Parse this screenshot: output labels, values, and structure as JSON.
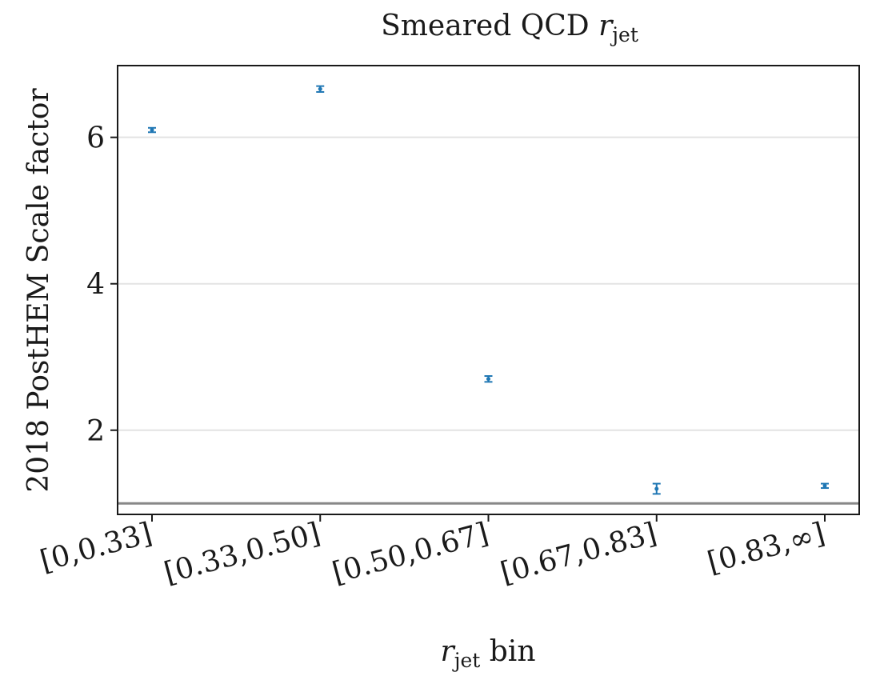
{
  "chart_data": {
    "type": "scatter",
    "title": {
      "main": "Smeared QCD ",
      "var": "r",
      "sub": "jet"
    },
    "xlabel": {
      "var": "r",
      "sub": "jet",
      "rest": " bin"
    },
    "ylabel": "2018 PostHEM Scale factor",
    "categories": [
      "[0,0.33]",
      "[0.33,0.50]",
      "[0.50,0.67]",
      "[0.67,0.83]",
      "[0.83,∞]"
    ],
    "series": [
      {
        "values": [
          6.1,
          6.66,
          2.7,
          1.2,
          1.24
        ],
        "errors": [
          0.03,
          0.04,
          0.04,
          0.07,
          0.03
        ],
        "color": "#1f77b4"
      }
    ],
    "reference_line": {
      "y": 1.0,
      "color": "#888888"
    },
    "ylim": [
      0.85,
      6.98
    ],
    "yticks": [
      2,
      4,
      6
    ],
    "ytick_labels": [
      "2",
      "4",
      "6"
    ],
    "grid": "horizontal"
  }
}
